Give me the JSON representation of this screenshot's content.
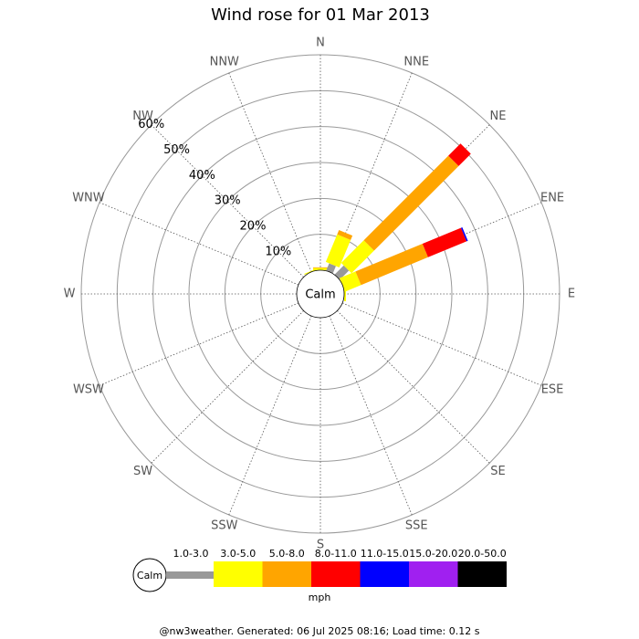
{
  "chart_data": {
    "type": "windrose",
    "title": "Wind rose for 01 Mar 2013",
    "categories": [
      "N",
      "NNE",
      "NE",
      "ENE",
      "E",
      "ESE",
      "SE",
      "SSE",
      "S",
      "SSW",
      "SW",
      "WSW",
      "W",
      "WNW",
      "NW",
      "NNW"
    ],
    "calm_label": "Calm",
    "ylim": [
      0,
      60
    ],
    "yticks": [
      {
        "value": 10,
        "label": "10%"
      },
      {
        "value": 20,
        "label": "20%"
      },
      {
        "value": 30,
        "label": "30%"
      },
      {
        "value": 40,
        "label": "40%"
      },
      {
        "value": 50,
        "label": "50%"
      },
      {
        "value": 60,
        "label": "60%"
      }
    ],
    "grid": true,
    "series": [
      {
        "name": "1.0-3.0",
        "color": "#999999",
        "values": [
          0,
          2.2,
          3.6,
          0,
          0,
          0,
          0,
          0,
          0,
          0,
          0,
          0,
          0,
          0,
          0,
          0
        ]
      },
      {
        "name": "3.0-5.0",
        "color": "#ffff00",
        "values": [
          0.6,
          8.3,
          8.9,
          4.8,
          0.5,
          0,
          0,
          0,
          0,
          0,
          0,
          0,
          0,
          0,
          0,
          0.3
        ]
      },
      {
        "name": "5.0-8.0",
        "color": "#ffa500",
        "values": [
          0.2,
          1.3,
          33.3,
          20.2,
          0,
          0,
          0,
          0,
          0,
          0,
          0,
          0,
          0,
          0,
          0,
          0
        ]
      },
      {
        "name": "8.0-11.0",
        "color": "#ff0000",
        "values": [
          0,
          0,
          4.8,
          11.6,
          0,
          0,
          0,
          0,
          0,
          0,
          0,
          0,
          0,
          0,
          0,
          0
        ]
      },
      {
        "name": "11.0-15.0",
        "color": "#0000ff",
        "values": [
          0,
          0,
          0,
          0.4,
          0,
          0,
          0,
          0,
          0,
          0,
          0,
          0,
          0,
          0,
          0,
          0
        ]
      },
      {
        "name": "15.0-20.0",
        "color": "#a020f0",
        "values": [
          0,
          0,
          0,
          0,
          0,
          0,
          0,
          0,
          0,
          0,
          0,
          0,
          0,
          0,
          0,
          0
        ]
      },
      {
        "name": "20.0-50.0",
        "color": "#000000",
        "values": [
          0,
          0,
          0,
          0,
          0,
          0,
          0,
          0,
          0,
          0,
          0,
          0,
          0,
          0,
          0,
          0
        ]
      }
    ],
    "unit": "mph",
    "footer": "@nw3weather. Generated: 06 Jul 2025 08:16; Load time: 0.12 s"
  }
}
